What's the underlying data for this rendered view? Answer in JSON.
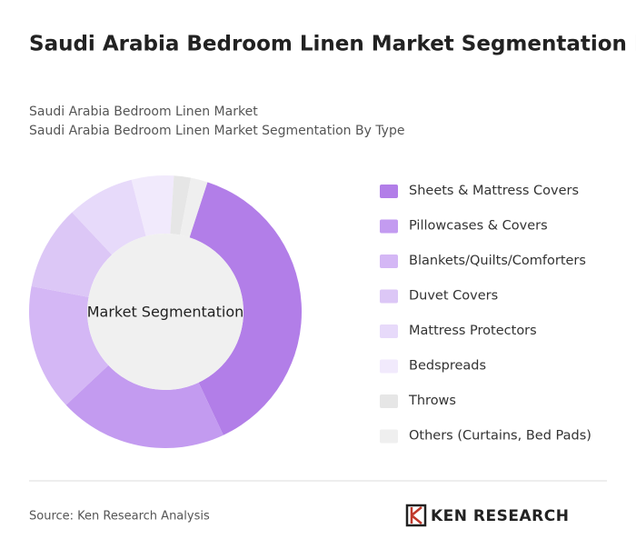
{
  "chart_data": {
    "type": "donut",
    "title": "Saudi Arabia Bedroom Linen Market Segmentation By Type (in value %)",
    "subtitle": [
      "Saudi Arabia Bedroom Linen Market",
      "Saudi Arabia Bedroom Linen Market Segmentation By Type"
    ],
    "center_label": "Market Segmentation",
    "categories": [
      "Sheets & Mattress Covers",
      "Pillowcases & Covers",
      "Blankets/Quilts/Comforters",
      "Duvet Covers",
      "Mattress Protectors",
      "Bedspreads",
      "Throws",
      "Others (Curtains, Bed Pads)"
    ],
    "values": [
      38,
      20,
      15,
      10,
      8,
      5,
      2,
      2
    ],
    "colors": [
      "#b27ee8",
      "#c39bf0",
      "#d4b7f5",
      "#dcc7f6",
      "#e7dafa",
      "#f1eafc",
      "#e6e6e6",
      "#efefef"
    ],
    "source": "Source: Ken Research Analysis",
    "logo": "KEN RESEARCH"
  }
}
